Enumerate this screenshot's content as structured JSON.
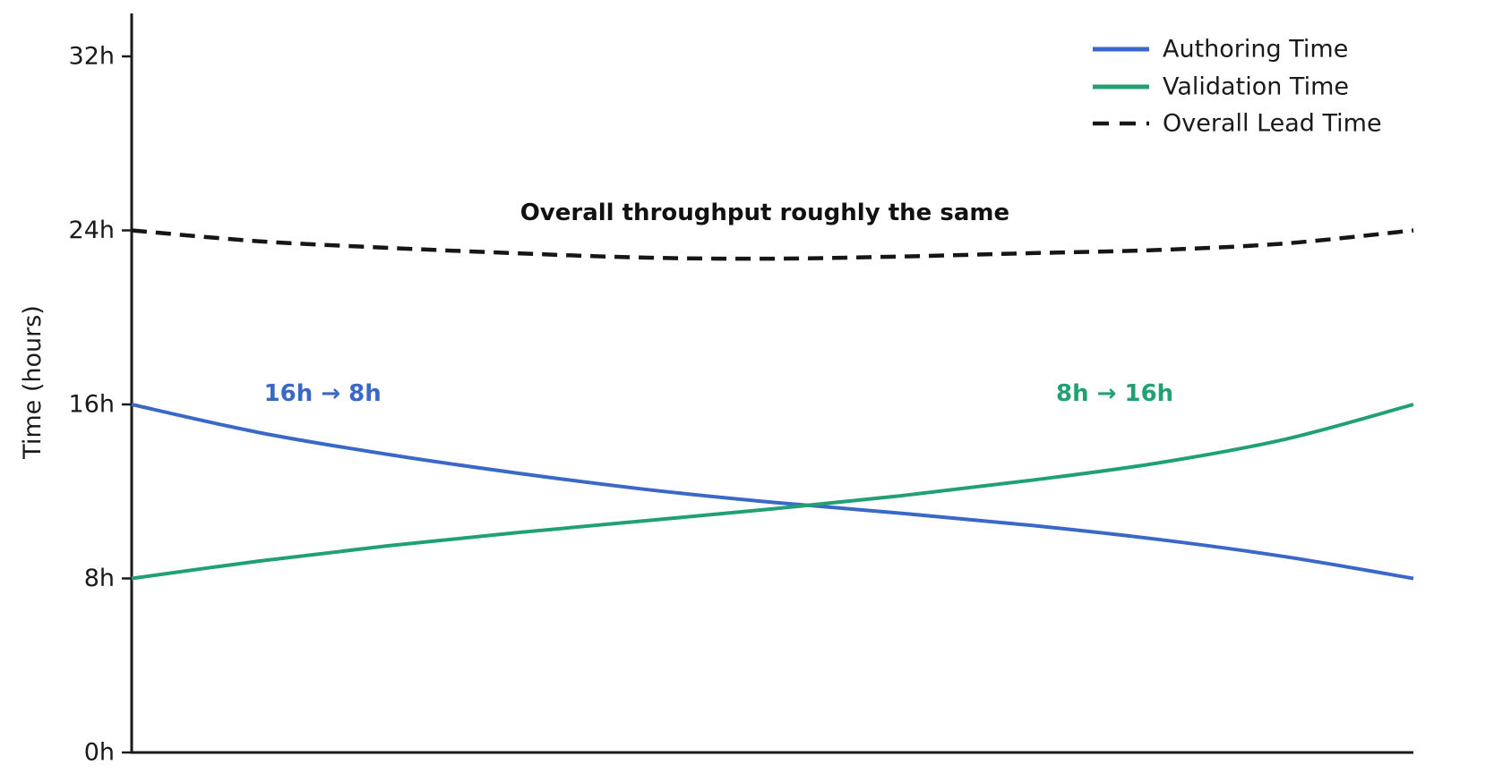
{
  "chart_data": {
    "type": "line",
    "title": "",
    "xlabel": "",
    "ylabel": "Time (hours)",
    "ylim": [
      0,
      32
    ],
    "grid": false,
    "x_axis_tick_labels": [],
    "yticks": [
      {
        "value": 0,
        "label": "0h"
      },
      {
        "value": 8,
        "label": "8h"
      },
      {
        "value": 16,
        "label": "16h"
      },
      {
        "value": 24,
        "label": "24h"
      },
      {
        "value": 32,
        "label": "32h"
      }
    ],
    "x": [
      0,
      0.1,
      0.2,
      0.3,
      0.4,
      0.5,
      0.6,
      0.7,
      0.8,
      0.9,
      1.0
    ],
    "series": [
      {
        "name": "Authoring Time",
        "color": "#3a68c6",
        "style": "solid",
        "start_value_hours": 16,
        "end_value_hours": 8,
        "values": [
          16.0,
          14.7,
          13.7,
          12.85,
          12.1,
          11.5,
          11.0,
          10.45,
          9.8,
          9.0,
          8.0
        ]
      },
      {
        "name": "Validation Time",
        "color": "#21a173",
        "style": "solid",
        "start_value_hours": 8,
        "end_value_hours": 16,
        "values": [
          8.0,
          8.8,
          9.5,
          10.1,
          10.65,
          11.2,
          11.8,
          12.5,
          13.3,
          14.4,
          16.0
        ]
      },
      {
        "name": "Overall Lead Time",
        "color": "#161616",
        "style": "dashed",
        "start_value_hours": 24,
        "end_value_hours": 24,
        "values": [
          24.0,
          23.5,
          23.2,
          22.95,
          22.75,
          22.7,
          22.8,
          22.95,
          23.1,
          23.4,
          24.0
        ]
      }
    ],
    "legend": {
      "position": "top-right",
      "frame": false,
      "entries": [
        "Authoring Time",
        "Validation Time",
        "Overall Lead Time"
      ]
    },
    "annotations": [
      {
        "text": "Overall throughput roughly the same",
        "x": 0.494,
        "y": 24.8,
        "color": "#111111",
        "bold": true
      },
      {
        "text": "16h → 8h",
        "x": 0.149,
        "y": 16.5,
        "color": "#3a68c6",
        "bold": true
      },
      {
        "text": "8h → 16h",
        "x": 0.767,
        "y": 16.5,
        "color": "#21a173",
        "bold": true
      }
    ]
  }
}
